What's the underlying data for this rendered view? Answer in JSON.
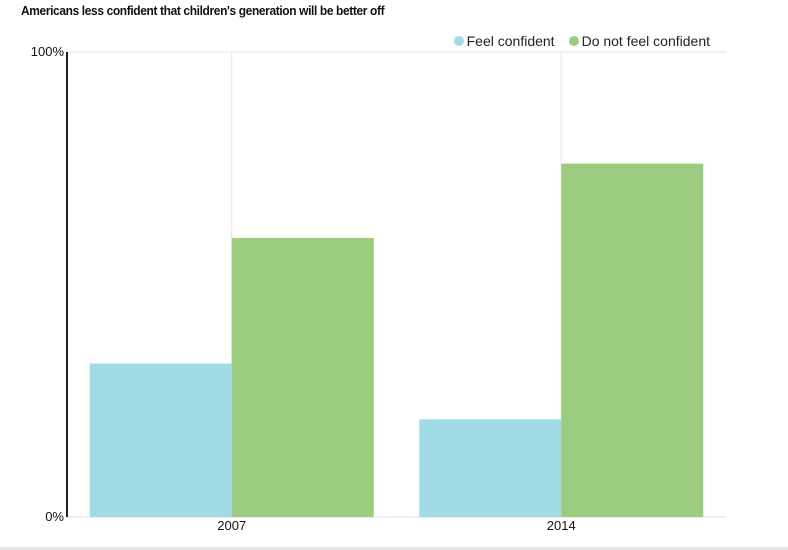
{
  "chart_data": {
    "type": "bar",
    "title": "Americans less confident that children's generation will be better off",
    "categories": [
      "2007",
      "2014"
    ],
    "series": [
      {
        "name": "Feel confident",
        "color": "#a1dbe6",
        "values": [
          33,
          21
        ]
      },
      {
        "name": "Do not feel confident",
        "color": "#9bcc7f",
        "values": [
          60,
          76
        ]
      }
    ],
    "ylim": [
      0,
      100
    ],
    "y_ticks": [
      {
        "value": 0,
        "label": "0%"
      },
      {
        "value": 100,
        "label": "100%"
      }
    ],
    "xlabel": "",
    "ylabel": "",
    "grid": "vertical",
    "legend_position": "top-right"
  }
}
